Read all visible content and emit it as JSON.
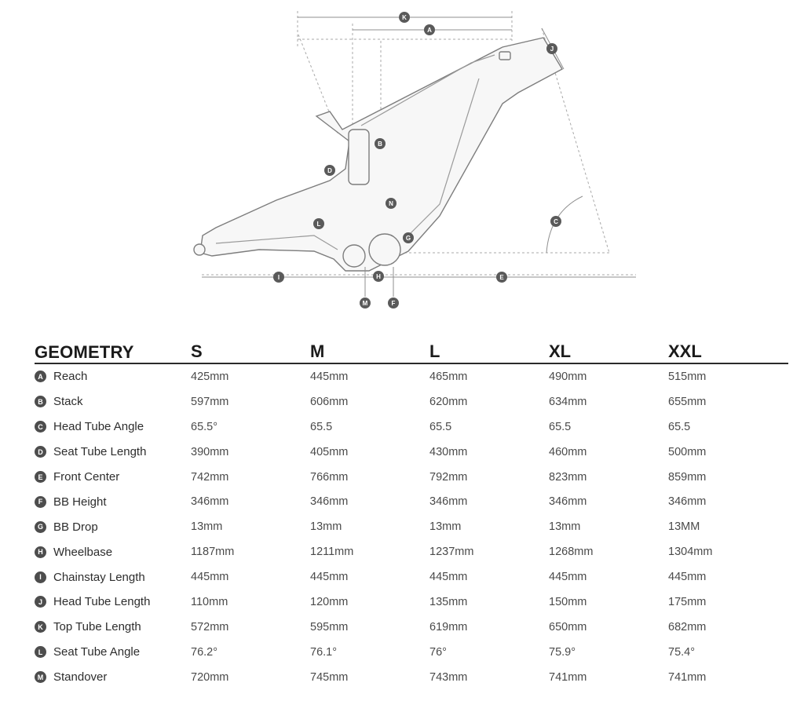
{
  "table": {
    "title": "GEOMETRY",
    "sizes": [
      "S",
      "M",
      "L",
      "XL",
      "XXL"
    ],
    "rows": [
      {
        "key": "A",
        "label": "Reach",
        "values": [
          "425mm",
          "445mm",
          "465mm",
          "490mm",
          "515mm"
        ]
      },
      {
        "key": "B",
        "label": "Stack",
        "values": [
          "597mm",
          "606mm",
          "620mm",
          "634mm",
          "655mm"
        ]
      },
      {
        "key": "C",
        "label": "Head Tube Angle",
        "values": [
          "65.5°",
          "65.5",
          "65.5",
          "65.5",
          "65.5"
        ]
      },
      {
        "key": "D",
        "label": "Seat Tube Length",
        "values": [
          "390mm",
          "405mm",
          "430mm",
          "460mm",
          "500mm"
        ]
      },
      {
        "key": "E",
        "label": "Front Center",
        "values": [
          "742mm",
          "766mm",
          "792mm",
          "823mm",
          "859mm"
        ]
      },
      {
        "key": "F",
        "label": "BB Height",
        "values": [
          "346mm",
          "346mm",
          "346mm",
          "346mm",
          "346mm"
        ]
      },
      {
        "key": "G",
        "label": "BB Drop",
        "values": [
          "13mm",
          "13mm",
          "13mm",
          "13mm",
          "13MM"
        ]
      },
      {
        "key": "H",
        "label": "Wheelbase",
        "values": [
          "1187mm",
          "1211mm",
          "1237mm",
          "1268mm",
          "1304mm"
        ]
      },
      {
        "key": "I",
        "label": "Chainstay Length",
        "values": [
          "445mm",
          "445mm",
          "445mm",
          "445mm",
          "445mm"
        ]
      },
      {
        "key": "J",
        "label": "Head Tube Length",
        "values": [
          "110mm",
          "120mm",
          "135mm",
          "150mm",
          "175mm"
        ]
      },
      {
        "key": "K",
        "label": "Top Tube Length",
        "values": [
          "572mm",
          "595mm",
          "619mm",
          "650mm",
          "682mm"
        ]
      },
      {
        "key": "L",
        "label": "Seat Tube Angle",
        "values": [
          "76.2°",
          "76.1°",
          "76°",
          "75.9°",
          "75.4°"
        ]
      },
      {
        "key": "M",
        "label": "Standover",
        "values": [
          "720mm",
          "745mm",
          "743mm",
          "741mm",
          "741mm"
        ]
      }
    ]
  },
  "diagram": {
    "markers": [
      "K",
      "A",
      "J",
      "B",
      "D",
      "C",
      "N",
      "L",
      "G",
      "I",
      "H",
      "E",
      "M",
      "F"
    ]
  }
}
